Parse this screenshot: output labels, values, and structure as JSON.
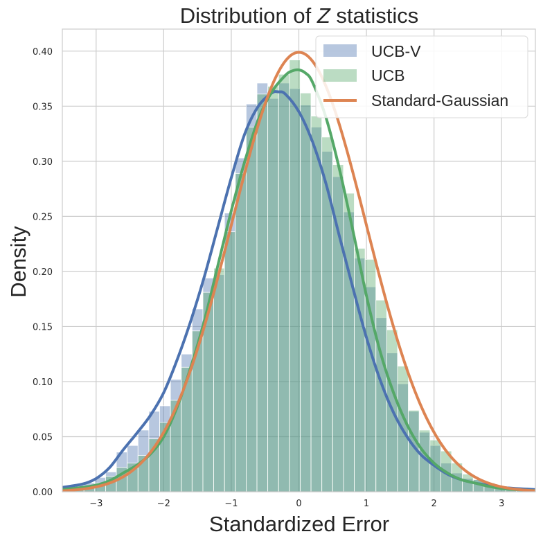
{
  "chart_data": {
    "type": "bar",
    "title": "Distribution of ",
    "title_var": "Z",
    "title_rest": " statistics",
    "xlabel": "Standardized Error",
    "ylabel": "Density",
    "xlim": [
      -3.5,
      3.5
    ],
    "ylim": [
      0,
      0.42
    ],
    "grid": true,
    "legend_position": "top-right",
    "x_ticks": [
      -3,
      -2,
      -1,
      0,
      1,
      2,
      3
    ],
    "x_tick_labels": [
      "−3",
      "−2",
      "−1",
      "0",
      "1",
      "2",
      "3"
    ],
    "y_ticks": [
      0,
      0.05,
      0.1,
      0.15,
      0.2,
      0.25,
      0.3,
      0.35,
      0.4
    ],
    "y_tick_labels": [
      "0.00",
      "0.05",
      "0.10",
      "0.15",
      "0.20",
      "0.25",
      "0.30",
      "0.35",
      "0.40"
    ],
    "series": [
      {
        "name": "UCB-V",
        "kind": "histogram",
        "color": "#4c72b0",
        "bin_width": 0.16,
        "bin_starts": [
          -3.5,
          -3.34,
          -3.18,
          -3.02,
          -2.86,
          -2.7,
          -2.54,
          -2.38,
          -2.22,
          -2.06,
          -1.9,
          -1.74,
          -1.58,
          -1.42,
          -1.26,
          -1.1,
          -0.94,
          -0.78,
          -0.62,
          -0.46,
          -0.3,
          -0.14,
          0.02,
          0.18,
          0.34,
          0.5,
          0.66,
          0.82,
          0.98,
          1.14,
          1.3,
          1.46,
          1.62,
          1.78,
          1.94,
          2.1,
          2.26,
          2.42,
          2.58,
          2.74,
          2.9,
          3.06,
          3.22
        ],
        "values": [
          0.004,
          0.006,
          0.008,
          0.013,
          0.018,
          0.036,
          0.042,
          0.056,
          0.073,
          0.078,
          0.102,
          0.125,
          0.166,
          0.194,
          0.197,
          0.253,
          0.303,
          0.352,
          0.371,
          0.357,
          0.371,
          0.366,
          0.351,
          0.331,
          0.309,
          0.286,
          0.254,
          0.212,
          0.186,
          0.158,
          0.126,
          0.098,
          0.073,
          0.054,
          0.042,
          0.026,
          0.017,
          0.012,
          0.011,
          0.007,
          0.004,
          0.003,
          0.002
        ]
      },
      {
        "name": "UCB",
        "kind": "histogram",
        "color": "#55a868",
        "bin_width": 0.16,
        "bin_starts": [
          -3.5,
          -3.34,
          -3.18,
          -3.02,
          -2.86,
          -2.7,
          -2.54,
          -2.38,
          -2.22,
          -2.06,
          -1.9,
          -1.74,
          -1.58,
          -1.42,
          -1.26,
          -1.1,
          -0.94,
          -0.78,
          -0.62,
          -0.46,
          -0.3,
          -0.14,
          0.02,
          0.18,
          0.34,
          0.5,
          0.66,
          0.82,
          0.98,
          1.14,
          1.3,
          1.46,
          1.62,
          1.78,
          1.94,
          2.1,
          2.26,
          2.42,
          2.58,
          2.74,
          2.9,
          3.06,
          3.22
        ],
        "values": [
          0.001,
          0.002,
          0.004,
          0.008,
          0.014,
          0.022,
          0.026,
          0.033,
          0.048,
          0.063,
          0.083,
          0.113,
          0.146,
          0.181,
          0.203,
          0.236,
          0.289,
          0.331,
          0.361,
          0.368,
          0.379,
          0.392,
          0.362,
          0.341,
          0.322,
          0.297,
          0.271,
          0.221,
          0.211,
          0.174,
          0.147,
          0.114,
          0.074,
          0.056,
          0.047,
          0.037,
          0.026,
          0.016,
          0.011,
          0.008,
          0.004,
          0.002,
          0.001
        ]
      },
      {
        "name": "UCB-V",
        "kind": "kde",
        "color": "#4c72b0",
        "x": [
          -3.5,
          -3.2,
          -3.0,
          -2.8,
          -2.6,
          -2.4,
          -2.2,
          -2.0,
          -1.8,
          -1.6,
          -1.4,
          -1.2,
          -1.0,
          -0.8,
          -0.6,
          -0.4,
          -0.3,
          -0.2,
          0.0,
          0.2,
          0.4,
          0.6,
          0.8,
          1.0,
          1.2,
          1.4,
          1.6,
          1.8,
          2.0,
          2.2,
          2.4,
          2.6,
          2.8,
          3.0,
          3.2,
          3.5
        ],
        "values": [
          0.004,
          0.007,
          0.012,
          0.022,
          0.038,
          0.053,
          0.069,
          0.09,
          0.12,
          0.155,
          0.195,
          0.24,
          0.285,
          0.325,
          0.35,
          0.362,
          0.363,
          0.361,
          0.345,
          0.318,
          0.28,
          0.232,
          0.185,
          0.14,
          0.102,
          0.072,
          0.05,
          0.034,
          0.024,
          0.016,
          0.011,
          0.008,
          0.006,
          0.004,
          0.003,
          0.002
        ]
      },
      {
        "name": "UCB",
        "kind": "kde",
        "color": "#55a868",
        "x": [
          -3.5,
          -3.2,
          -3.0,
          -2.8,
          -2.6,
          -2.4,
          -2.2,
          -2.0,
          -1.8,
          -1.6,
          -1.4,
          -1.2,
          -1.0,
          -0.8,
          -0.6,
          -0.4,
          -0.2,
          -0.1,
          0.0,
          0.1,
          0.2,
          0.4,
          0.6,
          0.8,
          1.0,
          1.2,
          1.4,
          1.6,
          1.8,
          2.0,
          2.2,
          2.4,
          2.6,
          2.8,
          3.0,
          3.2,
          3.5
        ],
        "values": [
          0.002,
          0.004,
          0.006,
          0.01,
          0.017,
          0.024,
          0.034,
          0.05,
          0.077,
          0.113,
          0.155,
          0.205,
          0.255,
          0.3,
          0.338,
          0.363,
          0.378,
          0.382,
          0.383,
          0.38,
          0.372,
          0.34,
          0.293,
          0.237,
          0.178,
          0.128,
          0.09,
          0.061,
          0.04,
          0.026,
          0.017,
          0.011,
          0.008,
          0.005,
          0.003,
          0.002,
          0.001
        ]
      },
      {
        "name": "Standard-Gaussian",
        "kind": "pdf",
        "color": "#dd8452",
        "x_range": [
          -3.5,
          3.5
        ],
        "mean": 0,
        "std": 1
      }
    ]
  }
}
